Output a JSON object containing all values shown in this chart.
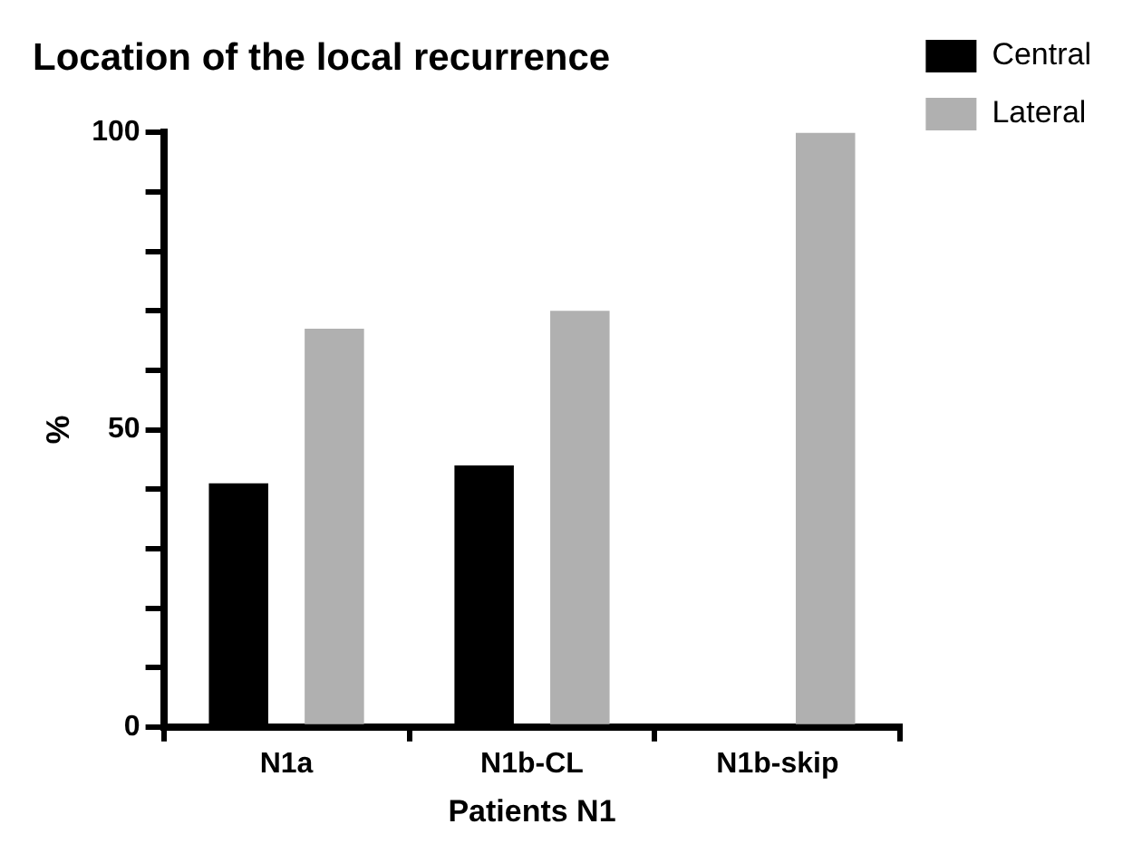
{
  "chart_data": {
    "type": "bar",
    "title": "Location of the local recurrence",
    "xlabel": "Patients N1",
    "ylabel": "%",
    "categories": [
      "N1a",
      "N1b-CL",
      "N1b-skip"
    ],
    "series": [
      {
        "name": "Central",
        "color": "#000000",
        "values": [
          41,
          44,
          0
        ]
      },
      {
        "name": "Lateral",
        "color": "#b0b0b0",
        "values": [
          67,
          70,
          100
        ]
      }
    ],
    "ylim": [
      0,
      100
    ],
    "yticks": [
      0,
      {
        "value": 10,
        "label": null
      },
      {
        "value": 20,
        "label": null
      },
      {
        "value": 30,
        "label": null
      },
      {
        "value": 40,
        "label": null
      },
      50,
      {
        "value": 60,
        "label": null
      },
      {
        "value": 70,
        "label": null
      },
      {
        "value": 80,
        "label": null
      },
      {
        "value": 90,
        "label": null
      },
      100
    ],
    "grid": false,
    "legend": "top right"
  }
}
